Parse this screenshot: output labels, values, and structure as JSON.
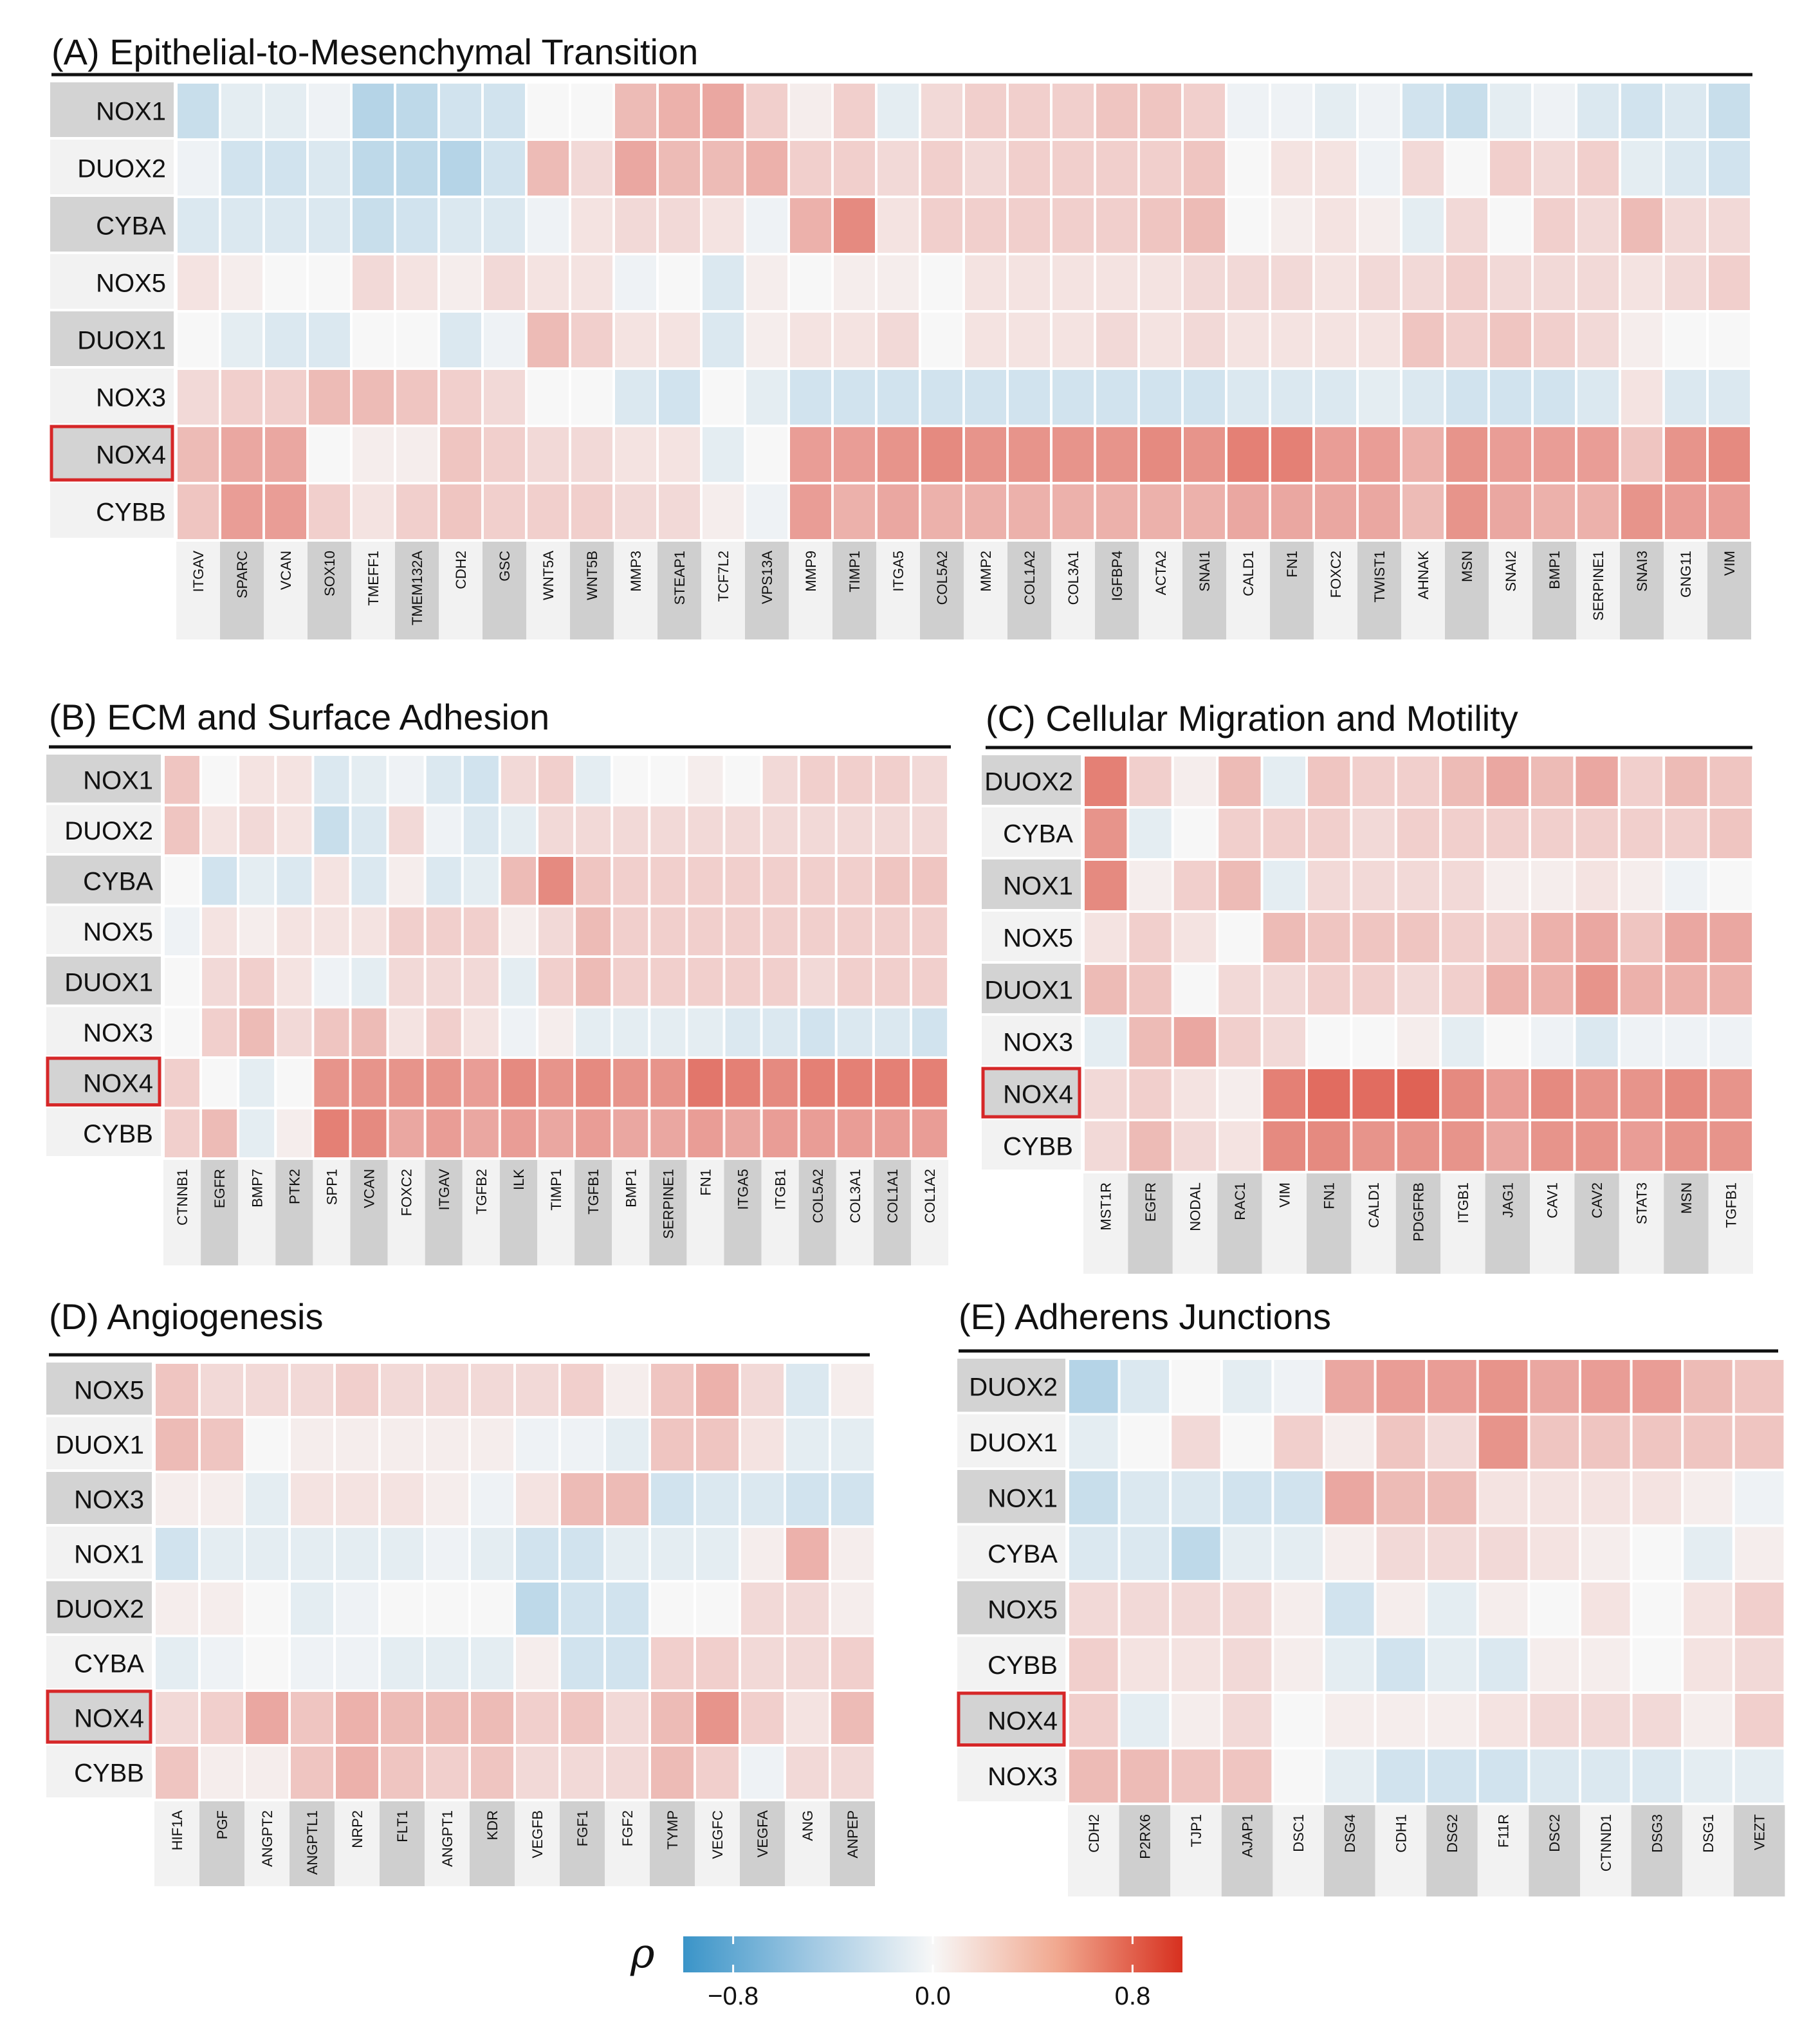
{
  "chart_data": [
    {
      "type": "heatmap",
      "title": "(A) Epithelial-to-Mesenchymal Transition",
      "rows": [
        "NOX1",
        "DUOX2",
        "CYBA",
        "NOX5",
        "DUOX1",
        "NOX3",
        "NOX4",
        "CYBB"
      ],
      "columns": [
        "ITGAV",
        "SPARC",
        "VCAN",
        "SOX10",
        "TMEFF1",
        "TMEM132A",
        "CDH2",
        "GSC",
        "WNT5A",
        "WNT5B",
        "MMP3",
        "STEAP1",
        "TCF7L2",
        "VPS13A",
        "MMP9",
        "TIMP1",
        "ITGA5",
        "COL5A2",
        "MMP2",
        "COL1A2",
        "COL3A1",
        "IGFBP4",
        "ACTA2",
        "SNAI1",
        "CALD1",
        "FN1",
        "FOXC2",
        "TWIST1",
        "AHNAK",
        "MSN",
        "SNAI2",
        "BMP1",
        "SERPINE1",
        "SNAI3",
        "GNG11",
        "VIM"
      ],
      "highlighted_row": "NOX4",
      "values": [
        [
          -0.25,
          -0.1,
          -0.1,
          -0.05,
          -0.35,
          -0.3,
          -0.2,
          -0.2,
          0.0,
          0.0,
          0.3,
          0.35,
          0.4,
          0.2,
          0.05,
          0.2,
          -0.1,
          0.15,
          0.2,
          0.2,
          0.2,
          0.25,
          0.25,
          0.2,
          -0.05,
          -0.05,
          -0.1,
          -0.05,
          -0.2,
          -0.25,
          -0.1,
          -0.05,
          -0.15,
          -0.2,
          -0.15,
          -0.25
        ],
        [
          -0.05,
          -0.2,
          -0.2,
          -0.15,
          -0.3,
          -0.3,
          -0.35,
          -0.2,
          0.3,
          0.15,
          0.4,
          0.3,
          0.3,
          0.35,
          0.2,
          0.2,
          0.15,
          0.2,
          0.15,
          0.2,
          0.2,
          0.2,
          0.2,
          0.25,
          0.0,
          0.1,
          0.1,
          -0.05,
          0.15,
          0.0,
          0.2,
          0.15,
          0.2,
          -0.1,
          -0.15,
          -0.2
        ],
        [
          -0.15,
          -0.15,
          -0.15,
          -0.15,
          -0.25,
          -0.2,
          -0.15,
          -0.15,
          -0.05,
          0.1,
          0.15,
          0.15,
          0.1,
          -0.05,
          0.35,
          0.55,
          0.1,
          0.2,
          0.2,
          0.2,
          0.2,
          0.2,
          0.25,
          0.3,
          0.0,
          0.05,
          0.1,
          0.05,
          -0.1,
          0.15,
          0.0,
          0.2,
          0.15,
          0.3,
          0.15,
          0.15
        ],
        [
          0.1,
          0.05,
          0.0,
          0.0,
          0.15,
          0.1,
          0.05,
          0.15,
          0.1,
          0.1,
          -0.05,
          0.0,
          -0.15,
          0.05,
          0.0,
          0.05,
          0.05,
          0.0,
          0.1,
          0.1,
          0.1,
          0.1,
          0.1,
          0.15,
          0.15,
          0.15,
          0.1,
          0.15,
          0.15,
          0.2,
          0.15,
          0.15,
          0.15,
          0.1,
          0.15,
          0.2
        ],
        [
          0.0,
          -0.1,
          -0.15,
          -0.15,
          0.0,
          0.0,
          -0.15,
          -0.05,
          0.3,
          0.2,
          0.1,
          0.1,
          -0.15,
          0.05,
          0.1,
          0.1,
          0.15,
          0.0,
          0.1,
          0.1,
          0.1,
          0.15,
          0.1,
          0.15,
          0.1,
          0.1,
          0.1,
          0.1,
          0.25,
          0.2,
          0.25,
          0.2,
          0.15,
          0.05,
          0.0,
          0.0
        ],
        [
          0.15,
          0.2,
          0.2,
          0.3,
          0.3,
          0.25,
          0.2,
          0.15,
          0.0,
          0.0,
          -0.15,
          -0.2,
          0.0,
          -0.1,
          -0.2,
          -0.2,
          -0.2,
          -0.2,
          -0.2,
          -0.2,
          -0.2,
          -0.2,
          -0.2,
          -0.2,
          -0.15,
          -0.15,
          -0.15,
          -0.1,
          -0.15,
          -0.2,
          -0.2,
          -0.2,
          -0.15,
          0.1,
          -0.15,
          -0.15
        ],
        [
          0.3,
          0.4,
          0.4,
          0.0,
          0.05,
          0.05,
          0.25,
          0.2,
          0.15,
          0.15,
          0.1,
          0.1,
          -0.1,
          0.0,
          0.45,
          0.45,
          0.5,
          0.55,
          0.5,
          0.5,
          0.5,
          0.5,
          0.55,
          0.5,
          0.6,
          0.6,
          0.45,
          0.45,
          0.35,
          0.5,
          0.45,
          0.45,
          0.45,
          0.25,
          0.5,
          0.55
        ],
        [
          0.25,
          0.45,
          0.45,
          0.2,
          0.1,
          0.2,
          0.25,
          0.2,
          0.2,
          0.2,
          0.15,
          0.15,
          0.05,
          -0.05,
          0.45,
          0.35,
          0.4,
          0.35,
          0.35,
          0.35,
          0.35,
          0.35,
          0.35,
          0.35,
          0.4,
          0.4,
          0.4,
          0.4,
          0.3,
          0.5,
          0.4,
          0.35,
          0.35,
          0.5,
          0.45,
          0.45
        ]
      ]
    },
    {
      "type": "heatmap",
      "title": "(B) ECM and Surface Adhesion",
      "rows": [
        "NOX1",
        "DUOX2",
        "CYBA",
        "NOX5",
        "DUOX1",
        "NOX3",
        "NOX4",
        "CYBB"
      ],
      "columns": [
        "CTNNB1",
        "EGFR",
        "BMP7",
        "PTK2",
        "SPP1",
        "VCAN",
        "FOXC2",
        "ITGAV",
        "TGFB2",
        "ILK",
        "TIMP1",
        "TGFB1",
        "BMP1",
        "SERPINE1",
        "FN1",
        "ITGA5",
        "ITGB1",
        "COL5A2",
        "COL3A1",
        "COL1A1",
        "COL1A2"
      ],
      "highlighted_row": "NOX4",
      "values": [
        [
          0.25,
          0.0,
          0.1,
          0.1,
          -0.15,
          -0.1,
          -0.05,
          -0.15,
          -0.2,
          0.15,
          0.2,
          -0.1,
          0.0,
          0.0,
          0.05,
          0.0,
          0.15,
          0.2,
          0.2,
          0.2,
          0.15
        ],
        [
          0.25,
          0.1,
          0.15,
          0.1,
          -0.25,
          -0.15,
          0.15,
          -0.05,
          -0.15,
          -0.1,
          0.15,
          0.15,
          0.15,
          0.15,
          0.15,
          0.15,
          0.15,
          0.15,
          0.15,
          0.15,
          0.15
        ],
        [
          0.0,
          -0.2,
          -0.1,
          -0.15,
          0.1,
          -0.15,
          0.05,
          -0.15,
          -0.1,
          0.3,
          0.55,
          0.25,
          0.2,
          0.2,
          0.2,
          0.2,
          0.2,
          0.2,
          0.2,
          0.25,
          0.25
        ],
        [
          -0.05,
          0.1,
          0.05,
          0.1,
          0.1,
          0.1,
          0.2,
          0.2,
          0.2,
          0.05,
          0.15,
          0.3,
          0.2,
          0.2,
          0.2,
          0.2,
          0.2,
          0.2,
          0.2,
          0.2,
          0.2
        ],
        [
          0.0,
          0.15,
          0.2,
          0.1,
          -0.05,
          -0.1,
          0.15,
          0.15,
          0.15,
          -0.1,
          0.2,
          0.3,
          0.2,
          0.2,
          0.2,
          0.2,
          0.2,
          0.15,
          0.2,
          0.2,
          0.2
        ],
        [
          0.0,
          0.2,
          0.3,
          0.15,
          0.25,
          0.3,
          0.1,
          0.2,
          0.1,
          -0.05,
          0.05,
          -0.1,
          -0.1,
          -0.1,
          -0.1,
          -0.15,
          -0.15,
          -0.2,
          -0.15,
          -0.15,
          -0.2
        ],
        [
          0.2,
          0.0,
          -0.1,
          0.0,
          0.5,
          0.5,
          0.5,
          0.5,
          0.45,
          0.55,
          0.5,
          0.55,
          0.5,
          0.5,
          0.65,
          0.6,
          0.55,
          0.6,
          0.6,
          0.6,
          0.6
        ],
        [
          0.2,
          0.3,
          -0.1,
          0.05,
          0.6,
          0.55,
          0.4,
          0.45,
          0.4,
          0.45,
          0.4,
          0.45,
          0.4,
          0.4,
          0.45,
          0.4,
          0.45,
          0.45,
          0.45,
          0.45,
          0.45
        ]
      ]
    },
    {
      "type": "heatmap",
      "title": "(C) Cellular Migration and Motility",
      "rows": [
        "DUOX2",
        "CYBA",
        "NOX1",
        "NOX5",
        "DUOX1",
        "NOX3",
        "NOX4",
        "CYBB"
      ],
      "columns": [
        "MST1R",
        "EGFR",
        "NODAL",
        "RAC1",
        "VIM",
        "FN1",
        "CALD1",
        "PDGFRB",
        "ITGB1",
        "JAG1",
        "CAV1",
        "CAV2",
        "STAT3",
        "MSN",
        "TGFB1"
      ],
      "highlighted_row": "NOX4",
      "values": [
        [
          0.6,
          0.2,
          0.05,
          0.3,
          -0.1,
          0.25,
          0.2,
          0.2,
          0.3,
          0.4,
          0.3,
          0.4,
          0.2,
          0.3,
          0.25
        ],
        [
          0.5,
          -0.1,
          0.0,
          0.2,
          0.2,
          0.2,
          0.15,
          0.2,
          0.2,
          0.2,
          0.2,
          0.2,
          0.2,
          0.2,
          0.25
        ],
        [
          0.55,
          0.05,
          0.2,
          0.3,
          -0.1,
          0.15,
          0.15,
          0.15,
          0.15,
          0.05,
          0.05,
          0.1,
          0.05,
          -0.05,
          0.0
        ],
        [
          0.1,
          0.2,
          0.1,
          0.0,
          0.3,
          0.25,
          0.25,
          0.25,
          0.2,
          0.2,
          0.35,
          0.4,
          0.25,
          0.4,
          0.4
        ],
        [
          0.3,
          0.25,
          0.0,
          0.15,
          0.15,
          0.2,
          0.2,
          0.15,
          0.2,
          0.35,
          0.35,
          0.5,
          0.35,
          0.35,
          0.35
        ],
        [
          -0.1,
          0.3,
          0.4,
          0.2,
          0.15,
          0.0,
          0.0,
          0.05,
          -0.1,
          0.0,
          -0.05,
          -0.15,
          -0.05,
          -0.05,
          -0.05
        ],
        [
          0.15,
          0.2,
          0.1,
          0.05,
          0.6,
          0.7,
          0.7,
          0.75,
          0.55,
          0.45,
          0.55,
          0.5,
          0.5,
          0.55,
          0.5
        ],
        [
          0.15,
          0.3,
          0.15,
          0.1,
          0.55,
          0.55,
          0.5,
          0.5,
          0.5,
          0.4,
          0.5,
          0.5,
          0.45,
          0.5,
          0.5
        ]
      ]
    },
    {
      "type": "heatmap",
      "title": "(D) Angiogenesis",
      "rows": [
        "NOX5",
        "DUOX1",
        "NOX3",
        "NOX1",
        "DUOX2",
        "CYBA",
        "NOX4",
        "CYBB"
      ],
      "columns": [
        "HIF1A",
        "PGF",
        "ANGPT2",
        "ANGPTL1",
        "NRP2",
        "FLT1",
        "ANGPT1",
        "KDR",
        "VEGFB",
        "FGF1",
        "FGF2",
        "TYMP",
        "VEGFC",
        "VEGFA",
        "ANG",
        "ANPEP"
      ],
      "highlighted_row": "NOX4",
      "values": [
        [
          0.25,
          0.15,
          0.15,
          0.15,
          0.2,
          0.15,
          0.15,
          0.15,
          0.15,
          0.2,
          0.05,
          0.25,
          0.35,
          0.15,
          -0.15,
          0.05
        ],
        [
          0.3,
          0.25,
          0.0,
          0.05,
          0.05,
          0.05,
          0.05,
          0.05,
          -0.05,
          -0.05,
          -0.1,
          0.25,
          0.25,
          0.1,
          -0.1,
          -0.1
        ],
        [
          0.05,
          0.05,
          -0.1,
          0.1,
          0.1,
          0.1,
          0.05,
          -0.05,
          0.1,
          0.3,
          0.3,
          -0.2,
          -0.15,
          -0.15,
          -0.2,
          -0.2
        ],
        [
          -0.2,
          -0.1,
          -0.1,
          -0.1,
          -0.1,
          -0.1,
          -0.05,
          -0.1,
          -0.2,
          -0.2,
          -0.1,
          -0.1,
          -0.1,
          0.05,
          0.35,
          0.05
        ],
        [
          0.05,
          0.05,
          0.0,
          -0.1,
          -0.05,
          0.0,
          0.0,
          0.0,
          -0.3,
          -0.2,
          -0.2,
          0.0,
          0.0,
          0.15,
          0.15,
          0.05
        ],
        [
          -0.1,
          -0.05,
          0.0,
          -0.05,
          -0.05,
          -0.1,
          -0.1,
          -0.1,
          0.05,
          -0.2,
          -0.2,
          0.2,
          0.2,
          0.15,
          0.15,
          0.2
        ],
        [
          0.15,
          0.2,
          0.4,
          0.25,
          0.35,
          0.3,
          0.3,
          0.3,
          0.2,
          0.25,
          0.15,
          0.3,
          0.5,
          0.2,
          0.1,
          0.3
        ],
        [
          0.25,
          0.05,
          0.05,
          0.25,
          0.35,
          0.25,
          0.2,
          0.25,
          0.15,
          0.15,
          0.15,
          0.3,
          0.2,
          -0.05,
          0.15,
          0.15
        ]
      ]
    },
    {
      "type": "heatmap",
      "title": "(E) Adherens Junctions",
      "rows": [
        "DUOX2",
        "DUOX1",
        "NOX1",
        "CYBA",
        "NOX5",
        "CYBB",
        "NOX4",
        "NOX3"
      ],
      "columns": [
        "CDH2",
        "P2RX6",
        "TJP1",
        "AJAP1",
        "DSC1",
        "DSG4",
        "CDH1",
        "DSG2",
        "F11R",
        "DSC2",
        "CTNND1",
        "DSG3",
        "DSG1",
        "VEZT"
      ],
      "highlighted_row": "NOX4",
      "values": [
        [
          -0.35,
          -0.15,
          0.0,
          -0.1,
          -0.05,
          0.4,
          0.45,
          0.45,
          0.5,
          0.4,
          0.45,
          0.45,
          0.3,
          0.25
        ],
        [
          -0.1,
          0.0,
          0.15,
          0.0,
          0.2,
          0.05,
          0.25,
          0.15,
          0.5,
          0.25,
          0.25,
          0.25,
          0.25,
          0.25
        ],
        [
          -0.25,
          -0.15,
          -0.15,
          -0.2,
          -0.2,
          0.4,
          0.3,
          0.3,
          0.1,
          0.1,
          0.1,
          0.1,
          0.05,
          -0.05
        ],
        [
          -0.15,
          -0.15,
          -0.3,
          -0.1,
          -0.1,
          0.05,
          0.15,
          0.15,
          0.15,
          0.1,
          0.05,
          0.0,
          -0.1,
          0.05
        ],
        [
          0.15,
          0.15,
          0.15,
          0.15,
          0.05,
          -0.2,
          0.05,
          -0.1,
          0.05,
          0.0,
          0.1,
          0.0,
          0.1,
          0.2
        ],
        [
          0.2,
          0.1,
          0.1,
          0.15,
          0.05,
          -0.1,
          -0.2,
          -0.1,
          -0.15,
          0.05,
          0.05,
          0.0,
          0.1,
          0.15
        ],
        [
          0.2,
          -0.1,
          0.05,
          0.15,
          0.0,
          0.05,
          0.05,
          0.05,
          0.1,
          0.15,
          0.15,
          0.15,
          0.05,
          0.2
        ],
        [
          0.3,
          0.3,
          0.25,
          0.25,
          0.0,
          -0.1,
          -0.2,
          -0.2,
          -0.2,
          -0.15,
          -0.15,
          -0.15,
          -0.1,
          -0.1
        ]
      ]
    }
  ],
  "legend": {
    "title": "ρ",
    "ticks": [
      "−0.8",
      "0.0",
      "0.8"
    ],
    "tick_values": [
      -0.8,
      0.0,
      0.8
    ],
    "range": [
      -1.0,
      1.0
    ],
    "colors": {
      "negative": "#3690c0",
      "zero": "#f7f7f7",
      "positive": "#d73027"
    }
  },
  "highlight_color": "#d62728"
}
